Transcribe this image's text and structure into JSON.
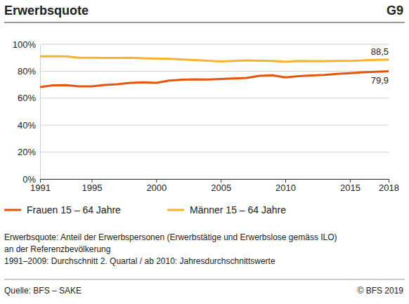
{
  "chart_data": {
    "type": "line",
    "title": "Erwerbsquote",
    "label": "G9",
    "x": [
      1991,
      1992,
      1993,
      1994,
      1995,
      1996,
      1997,
      1998,
      1999,
      2000,
      2001,
      2002,
      2003,
      2004,
      2005,
      2006,
      2007,
      2008,
      2009,
      2010,
      2011,
      2012,
      2013,
      2014,
      2015,
      2016,
      2017,
      2018
    ],
    "series": [
      {
        "name": "Frauen 15 – 64 Jahre",
        "color": "#e6550d",
        "values": [
          68.2,
          69.5,
          69.6,
          68.8,
          68.8,
          69.8,
          70.3,
          71.3,
          71.8,
          71.4,
          73.0,
          73.7,
          73.9,
          73.8,
          74.2,
          74.6,
          75.0,
          76.6,
          77.0,
          75.4,
          76.3,
          76.8,
          77.2,
          78.0,
          78.5,
          79.2,
          79.6,
          79.9
        ]
      },
      {
        "name": "Männer 15 – 64 Jahre",
        "color": "#f7b32b",
        "values": [
          91.0,
          91.0,
          91.0,
          90.0,
          90.0,
          89.8,
          89.8,
          90.0,
          89.6,
          89.3,
          89.2,
          88.7,
          88.3,
          87.8,
          87.3,
          87.6,
          88.0,
          87.8,
          87.6,
          87.0,
          87.6,
          87.5,
          87.5,
          87.6,
          87.6,
          88.0,
          88.4,
          88.5
        ]
      }
    ],
    "xlim": [
      1991,
      2018
    ],
    "xticks": [
      1991,
      1995,
      2000,
      2005,
      2010,
      2015,
      2018
    ],
    "ylim": [
      0,
      100
    ],
    "yticks": [
      {
        "value": 0,
        "label": "0%"
      },
      {
        "value": 20,
        "label": "20%"
      },
      {
        "value": 40,
        "label": "40%"
      },
      {
        "value": 60,
        "label": "60%"
      },
      {
        "value": 80,
        "label": "80%"
      },
      {
        "value": 100,
        "label": "100%"
      }
    ],
    "grid": true,
    "annotations": [
      {
        "text": "88,5",
        "x": 2018,
        "y": 88.5
      },
      {
        "text": "79,9",
        "x": 2018,
        "y": 79.9
      }
    ],
    "notes": [
      "Erwerbsquote: Anteil der Erwerbspersonen (Erwerbstätige und Erwerbslose gemäss ILO)",
      "an der Referenzbevölkerung",
      "1991–2009: Durchschnitt 2. Quartal / ab 2010: Jahresdurchschnittswerte"
    ],
    "source": "Quelle: BFS – SAKE",
    "copyright": "© BFS 2019"
  }
}
